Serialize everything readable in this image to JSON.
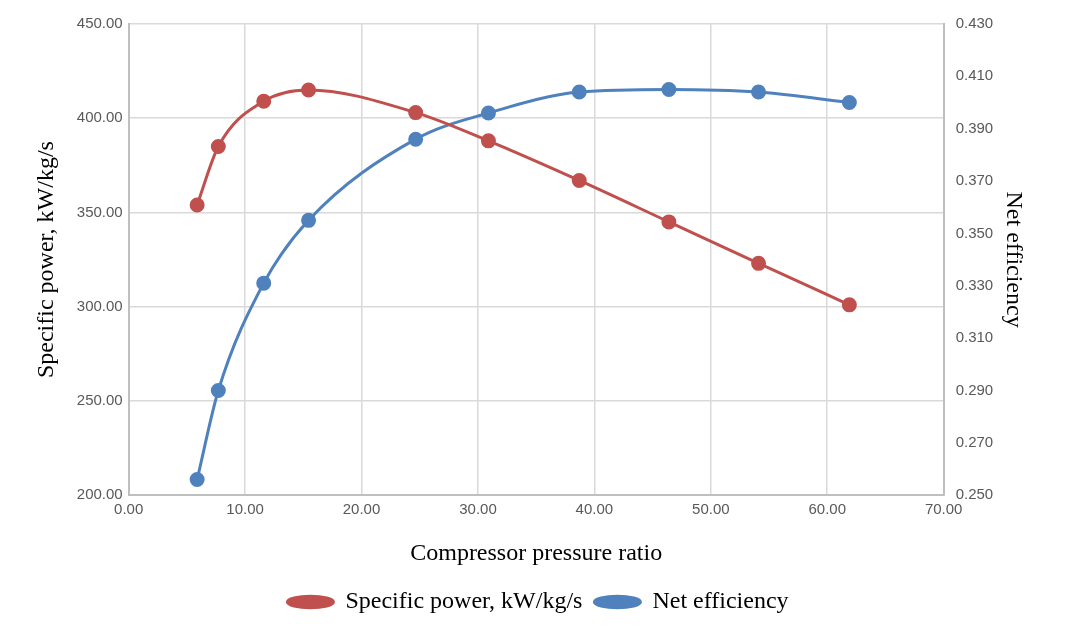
{
  "chart_data": {
    "type": "line",
    "xlabel": "Compressor pressure ratio",
    "ylabel": "Specific power, kW/kg/s",
    "y2label": "Net efficiency",
    "series": [
      {
        "name": "Specific power, kW/kg/s",
        "color": "#c0504d",
        "x": [
          5.88,
          7.7,
          11.6,
          15.45,
          24.65,
          30.9,
          38.7,
          46.4,
          54.1,
          61.9
        ],
        "values": [
          354,
          385,
          409,
          415,
          403,
          388,
          367,
          345,
          323,
          301
        ]
      },
      {
        "name": "Net efficiency",
        "color": "#4f81bd",
        "axis": "y2",
        "x": [
          5.88,
          7.7,
          11.6,
          15.45,
          24.65,
          30.9,
          38.7,
          46.4,
          54.1,
          61.9
        ],
        "values": [
          0.256,
          0.29,
          0.331,
          0.355,
          0.386,
          0.396,
          0.404,
          0.405,
          0.404,
          0.4
        ]
      }
    ],
    "xlim": [
      0,
      70
    ],
    "xticks": [
      {
        "value": 0,
        "label": "0.00"
      },
      {
        "value": 10,
        "label": "10.00"
      },
      {
        "value": 20,
        "label": "20.00"
      },
      {
        "value": 30,
        "label": "30.00"
      },
      {
        "value": 40,
        "label": "40.00"
      },
      {
        "value": 50,
        "label": "50.00"
      },
      {
        "value": 60,
        "label": "60.00"
      },
      {
        "value": 70,
        "label": "70.00"
      }
    ],
    "ylim": [
      200,
      450
    ],
    "yticks": [
      {
        "value": 200,
        "label": "200.00"
      },
      {
        "value": 250,
        "label": "250.00"
      },
      {
        "value": 300,
        "label": "300.00"
      },
      {
        "value": 350,
        "label": "350.00"
      },
      {
        "value": 400,
        "label": "400.00"
      },
      {
        "value": 450,
        "label": "450.00"
      }
    ],
    "y2lim": [
      0.25,
      0.43
    ],
    "y2ticks": [
      {
        "value": 0.25,
        "label": "0.250"
      },
      {
        "value": 0.27,
        "label": "0.270"
      },
      {
        "value": 0.29,
        "label": "0.290"
      },
      {
        "value": 0.31,
        "label": "0.310"
      },
      {
        "value": 0.33,
        "label": "0.330"
      },
      {
        "value": 0.35,
        "label": "0.350"
      },
      {
        "value": 0.37,
        "label": "0.370"
      },
      {
        "value": 0.39,
        "label": "0.390"
      },
      {
        "value": 0.41,
        "label": "0.410"
      },
      {
        "value": 0.43,
        "label": "0.430"
      }
    ],
    "grid": true,
    "legend": "bottom",
    "marker": "circle",
    "line_style": "solid"
  }
}
